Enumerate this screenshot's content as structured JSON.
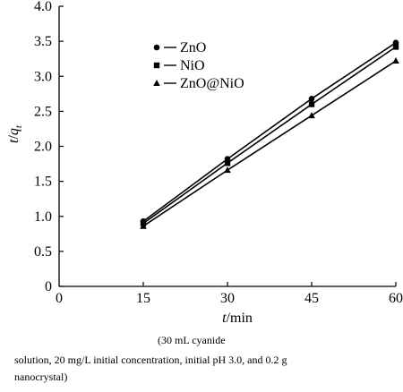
{
  "chart_data": {
    "type": "line",
    "xlabel_var": "t",
    "xlabel_unit": "/min",
    "ylabel_var": "t",
    "ylabel_sep": "/",
    "ylabel_q": "q",
    "ylabel_sub": "t",
    "xlim": [
      0,
      60
    ],
    "ylim": [
      0,
      4.0
    ],
    "x_ticks": [
      "0",
      "15",
      "30",
      "45",
      "60"
    ],
    "y_ticks": [
      "0",
      "0.5",
      "1.0",
      "1.5",
      "2.0",
      "2.5",
      "3.0",
      "3.5",
      "4.0"
    ],
    "x": [
      15,
      30,
      45,
      60
    ],
    "series": [
      {
        "name": "ZnO",
        "marker": "circle",
        "values": [
          0.93,
          1.82,
          2.68,
          3.48
        ]
      },
      {
        "name": "NiO",
        "marker": "square",
        "values": [
          0.9,
          1.76,
          2.6,
          3.42
        ]
      },
      {
        "name": "ZnO@NiO",
        "marker": "triangle",
        "values": [
          0.86,
          1.66,
          2.44,
          3.22
        ]
      }
    ],
    "legend_position": "top-left",
    "grid": false,
    "color": "#000000"
  },
  "caption": {
    "line1": "(30 mL cyanide",
    "line2": "solution, 20 mg/L initial concentration, initial pH 3.0, and 0.2 g",
    "line3": "nanocrystal)"
  }
}
